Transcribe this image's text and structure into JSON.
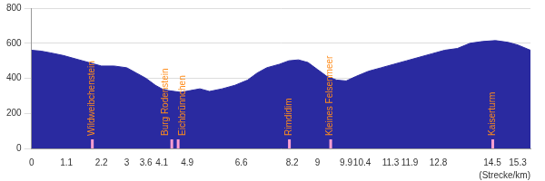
{
  "chart_data": {
    "type": "area",
    "x_label": "(Strecke/km)",
    "x": [
      0,
      0.3,
      0.6,
      1.0,
      1.5,
      2.0,
      2.2,
      2.6,
      3.0,
      3.3,
      3.6,
      3.9,
      4.1,
      4.3,
      4.5,
      4.7,
      5.0,
      5.3,
      5.6,
      6.0,
      6.4,
      6.8,
      7.1,
      7.4,
      7.8,
      8.1,
      8.4,
      8.7,
      9.0,
      9.3,
      9.6,
      9.9,
      10.2,
      10.6,
      11.0,
      11.4,
      11.8,
      12.2,
      12.6,
      13.0,
      13.4,
      13.8,
      14.2,
      14.6,
      15.0,
      15.3,
      15.7
    ],
    "values": [
      560,
      555,
      545,
      530,
      505,
      480,
      470,
      470,
      460,
      430,
      400,
      360,
      340,
      330,
      325,
      320,
      330,
      340,
      325,
      340,
      360,
      390,
      430,
      460,
      480,
      500,
      505,
      490,
      450,
      410,
      390,
      385,
      410,
      440,
      460,
      480,
      500,
      520,
      540,
      560,
      570,
      600,
      610,
      615,
      605,
      590,
      560
    ],
    "color": "#2a2aa0",
    "xlim": [
      0,
      15.7
    ],
    "xticks": [
      0,
      1.1,
      2.2,
      3,
      3.6,
      4.1,
      4.9,
      6.6,
      8.2,
      9,
      9.9,
      10.4,
      11.3,
      11.9,
      12.8,
      14.5,
      15.3
    ],
    "ylim": [
      0,
      800
    ],
    "yticks": [
      0,
      200,
      400,
      600,
      800
    ],
    "grid": true,
    "annotations": [
      {
        "label": "Wildweibchenstein",
        "x": 1.9
      },
      {
        "label": "Burg Rodenstein",
        "x": 4.4
      },
      {
        "label": "Eichbrünnchen",
        "x": 4.6
      },
      {
        "label": "Rimdidim",
        "x": 8.1
      },
      {
        "label": "Kleines Felsenmeer",
        "x": 9.4
      },
      {
        "label": "Kaiserturm",
        "x": 14.5
      }
    ]
  }
}
